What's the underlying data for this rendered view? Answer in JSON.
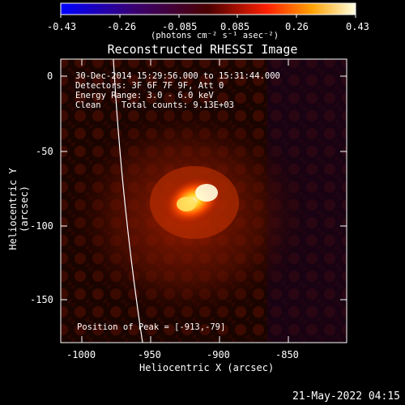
{
  "colorbar": {
    "ticks": [
      "-0.43",
      "-0.26",
      "-0.085",
      "0.085",
      "0.26",
      "0.43"
    ],
    "units": "(photons cm⁻² s⁻¹ asec⁻²)"
  },
  "title": "Reconstructed RHESSI Image",
  "annotations": {
    "time": "30-Dec-2014 15:29:56.000 to 15:31:44.000",
    "detectors": "Detectors: 3F 6F 7F 9F, Att 0",
    "energy": "Energy Range: 3.0 - 6.0 keV",
    "algorithm": "Clean    Total counts: 9.13E+03",
    "peak": "Position of Peak = [-913,-79]"
  },
  "axes": {
    "xlabel": "Heliocentric X (arcsec)",
    "ylabel": "Heliocentric Y (arcsec)",
    "xticks": [
      "-1000",
      "-950",
      "-900",
      "-850"
    ],
    "yticks": [
      "0",
      "-50",
      "-100",
      "-150"
    ]
  },
  "footer": "21-May-2022 04:15"
}
